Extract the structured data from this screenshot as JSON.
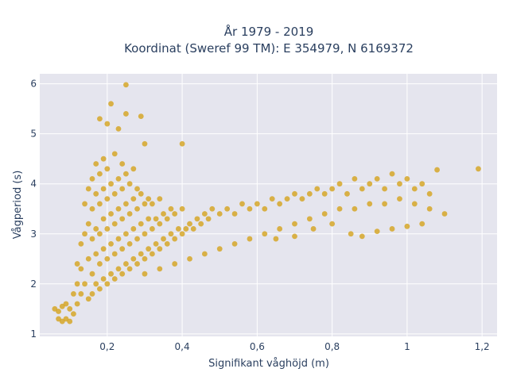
{
  "chart_data": {
    "type": "scatter",
    "title_line1": "År 1979 - 2019",
    "title_line2": "Koordinat (Sweref 99 TM): E 354979, N 6169372",
    "xlabel": "Signifikant våghöjd (m)",
    "ylabel": "Vågperiod (s)",
    "xlim": [
      0.02,
      1.24
    ],
    "ylim": [
      0.95,
      6.2
    ],
    "xticks": [
      0.2,
      0.4,
      0.6,
      0.8,
      1.0,
      1.2
    ],
    "xtick_labels": [
      "0,2",
      "0,4",
      "0,6",
      "0,8",
      "1",
      "1,2"
    ],
    "yticks": [
      1,
      2,
      3,
      4,
      5,
      6
    ],
    "ytick_labels": [
      "1",
      "2",
      "3",
      "4",
      "5",
      "6"
    ],
    "grid": true,
    "legend": "none",
    "colors": {
      "marker": "#D4A21C",
      "plot_bg": "#E5E5EE",
      "grid": "#ffffff"
    },
    "series": [
      {
        "points": [
          [
            0.06,
            1.5
          ],
          [
            0.07,
            1.3
          ],
          [
            0.07,
            1.45
          ],
          [
            0.08,
            1.25
          ],
          [
            0.08,
            1.55
          ],
          [
            0.09,
            1.3
          ],
          [
            0.09,
            1.6
          ],
          [
            0.1,
            1.25
          ],
          [
            0.1,
            1.5
          ],
          [
            0.11,
            1.4
          ],
          [
            0.11,
            1.8
          ],
          [
            0.12,
            1.6
          ],
          [
            0.12,
            2.0
          ],
          [
            0.12,
            2.4
          ],
          [
            0.13,
            1.8
          ],
          [
            0.13,
            2.3
          ],
          [
            0.13,
            2.8
          ],
          [
            0.14,
            2.0
          ],
          [
            0.14,
            3.0
          ],
          [
            0.14,
            3.6
          ],
          [
            0.15,
            1.7
          ],
          [
            0.15,
            2.5
          ],
          [
            0.15,
            3.2
          ],
          [
            0.15,
            3.9
          ],
          [
            0.16,
            1.8
          ],
          [
            0.16,
            2.2
          ],
          [
            0.16,
            2.9
          ],
          [
            0.16,
            3.5
          ],
          [
            0.16,
            4.1
          ],
          [
            0.17,
            2.0
          ],
          [
            0.17,
            2.6
          ],
          [
            0.17,
            3.1
          ],
          [
            0.17,
            3.8
          ],
          [
            0.17,
            4.4
          ],
          [
            0.18,
            1.9
          ],
          [
            0.18,
            2.4
          ],
          [
            0.18,
            3.0
          ],
          [
            0.18,
            3.6
          ],
          [
            0.18,
            4.2
          ],
          [
            0.18,
            5.3
          ],
          [
            0.19,
            2.1
          ],
          [
            0.19,
            2.7
          ],
          [
            0.19,
            3.3
          ],
          [
            0.19,
            3.9
          ],
          [
            0.19,
            4.5
          ],
          [
            0.2,
            2.0
          ],
          [
            0.2,
            2.5
          ],
          [
            0.2,
            3.1
          ],
          [
            0.2,
            3.7
          ],
          [
            0.2,
            4.3
          ],
          [
            0.2,
            5.2
          ],
          [
            0.21,
            2.2
          ],
          [
            0.21,
            2.8
          ],
          [
            0.21,
            3.4
          ],
          [
            0.21,
            4.0
          ],
          [
            0.21,
            5.6
          ],
          [
            0.22,
            2.1
          ],
          [
            0.22,
            2.6
          ],
          [
            0.22,
            3.2
          ],
          [
            0.22,
            3.8
          ],
          [
            0.22,
            4.6
          ],
          [
            0.23,
            2.3
          ],
          [
            0.23,
            2.9
          ],
          [
            0.23,
            3.5
          ],
          [
            0.23,
            4.1
          ],
          [
            0.23,
            5.1
          ],
          [
            0.24,
            2.2
          ],
          [
            0.24,
            2.7
          ],
          [
            0.24,
            3.3
          ],
          [
            0.24,
            3.9
          ],
          [
            0.24,
            4.4
          ],
          [
            0.25,
            2.4
          ],
          [
            0.25,
            3.0
          ],
          [
            0.25,
            3.6
          ],
          [
            0.25,
            4.2
          ],
          [
            0.25,
            5.98
          ],
          [
            0.25,
            5.4
          ],
          [
            0.26,
            2.3
          ],
          [
            0.26,
            2.8
          ],
          [
            0.26,
            3.4
          ],
          [
            0.26,
            4.0
          ],
          [
            0.27,
            2.5
          ],
          [
            0.27,
            3.1
          ],
          [
            0.27,
            3.7
          ],
          [
            0.27,
            4.3
          ],
          [
            0.28,
            2.4
          ],
          [
            0.28,
            2.9
          ],
          [
            0.28,
            3.5
          ],
          [
            0.28,
            3.9
          ],
          [
            0.29,
            2.6
          ],
          [
            0.29,
            3.2
          ],
          [
            0.29,
            3.8
          ],
          [
            0.29,
            5.35
          ],
          [
            0.3,
            2.5
          ],
          [
            0.3,
            3.0
          ],
          [
            0.3,
            3.6
          ],
          [
            0.3,
            4.8
          ],
          [
            0.31,
            2.7
          ],
          [
            0.31,
            3.3
          ],
          [
            0.31,
            3.7
          ],
          [
            0.32,
            2.6
          ],
          [
            0.32,
            3.1
          ],
          [
            0.32,
            3.6
          ],
          [
            0.33,
            2.8
          ],
          [
            0.33,
            3.3
          ],
          [
            0.34,
            2.7
          ],
          [
            0.34,
            3.2
          ],
          [
            0.34,
            3.7
          ],
          [
            0.35,
            2.9
          ],
          [
            0.35,
            3.4
          ],
          [
            0.36,
            2.8
          ],
          [
            0.36,
            3.3
          ],
          [
            0.37,
            3.0
          ],
          [
            0.37,
            3.5
          ],
          [
            0.38,
            2.9
          ],
          [
            0.38,
            3.4
          ],
          [
            0.39,
            3.1
          ],
          [
            0.4,
            3.0
          ],
          [
            0.4,
            3.5
          ],
          [
            0.4,
            4.8
          ],
          [
            0.41,
            3.1
          ],
          [
            0.42,
            3.2
          ],
          [
            0.43,
            3.1
          ],
          [
            0.44,
            3.3
          ],
          [
            0.45,
            3.2
          ],
          [
            0.46,
            3.4
          ],
          [
            0.47,
            3.3
          ],
          [
            0.48,
            3.5
          ],
          [
            0.5,
            3.4
          ],
          [
            0.52,
            3.5
          ],
          [
            0.54,
            3.4
          ],
          [
            0.56,
            3.6
          ],
          [
            0.58,
            3.5
          ],
          [
            0.6,
            3.6
          ],
          [
            0.62,
            3.5
          ],
          [
            0.64,
            3.7
          ],
          [
            0.66,
            3.6
          ],
          [
            0.68,
            3.7
          ],
          [
            0.7,
            3.8
          ],
          [
            0.72,
            3.7
          ],
          [
            0.74,
            3.8
          ],
          [
            0.76,
            3.9
          ],
          [
            0.78,
            3.8
          ],
          [
            0.8,
            3.9
          ],
          [
            0.82,
            4.0
          ],
          [
            0.84,
            3.8
          ],
          [
            0.86,
            4.1
          ],
          [
            0.88,
            3.9
          ],
          [
            0.9,
            4.0
          ],
          [
            0.92,
            4.1
          ],
          [
            0.94,
            3.9
          ],
          [
            0.96,
            4.2
          ],
          [
            0.98,
            4.0
          ],
          [
            1.0,
            4.1
          ],
          [
            1.02,
            3.9
          ],
          [
            1.04,
            4.0
          ],
          [
            1.06,
            3.8
          ],
          [
            1.08,
            4.28
          ],
          [
            1.1,
            3.4
          ],
          [
            1.19,
            4.3
          ],
          [
            0.3,
            2.2
          ],
          [
            0.34,
            2.3
          ],
          [
            0.38,
            2.4
          ],
          [
            0.42,
            2.5
          ],
          [
            0.46,
            2.6
          ],
          [
            0.5,
            2.7
          ],
          [
            0.54,
            2.8
          ],
          [
            0.58,
            2.9
          ],
          [
            0.62,
            3.0
          ],
          [
            0.66,
            3.1
          ],
          [
            0.7,
            3.2
          ],
          [
            0.74,
            3.3
          ],
          [
            0.78,
            3.4
          ],
          [
            0.82,
            3.5
          ],
          [
            0.86,
            3.5
          ],
          [
            0.9,
            3.6
          ],
          [
            0.94,
            3.6
          ],
          [
            0.98,
            3.7
          ],
          [
            1.02,
            3.6
          ],
          [
            1.06,
            3.5
          ],
          [
            0.85,
            3.0
          ],
          [
            0.88,
            2.95
          ],
          [
            0.92,
            3.05
          ],
          [
            0.96,
            3.1
          ],
          [
            1.0,
            3.15
          ],
          [
            1.04,
            3.2
          ],
          [
            0.8,
            3.2
          ],
          [
            0.75,
            3.1
          ],
          [
            0.7,
            2.95
          ],
          [
            0.65,
            2.9
          ]
        ]
      }
    ]
  }
}
